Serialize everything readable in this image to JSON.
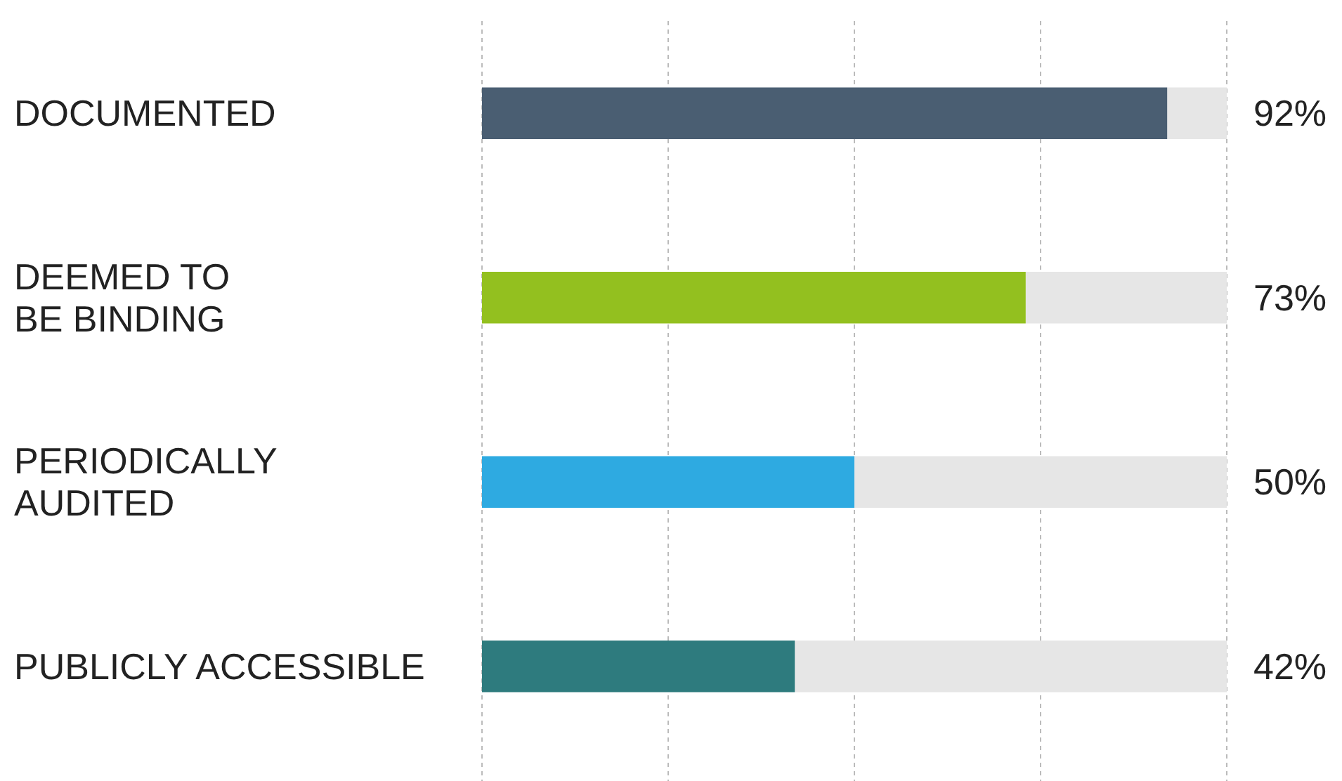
{
  "chart_data": {
    "type": "bar",
    "orientation": "horizontal",
    "categories": [
      "DOCUMENTED",
      "DEEMED TO\nBE BINDING",
      "PERIODICALLY\nAUDITED",
      "PUBLICLY ACCESSIBLE"
    ],
    "values": [
      92,
      73,
      50,
      42
    ],
    "colors": [
      "#4a5e72",
      "#93c01f",
      "#2eaae1",
      "#2e7b7e"
    ],
    "value_labels": [
      "92%",
      "73%",
      "50%",
      "42%"
    ],
    "xlim": [
      0,
      100
    ],
    "xticks": [
      {
        "value": 0,
        "label": null
      },
      {
        "value": 25,
        "label": null
      },
      {
        "value": 50,
        "label": null
      },
      {
        "value": 75,
        "label": null
      },
      {
        "value": 100,
        "label": null
      }
    ],
    "grid": "x",
    "tick_labels": "y"
  }
}
